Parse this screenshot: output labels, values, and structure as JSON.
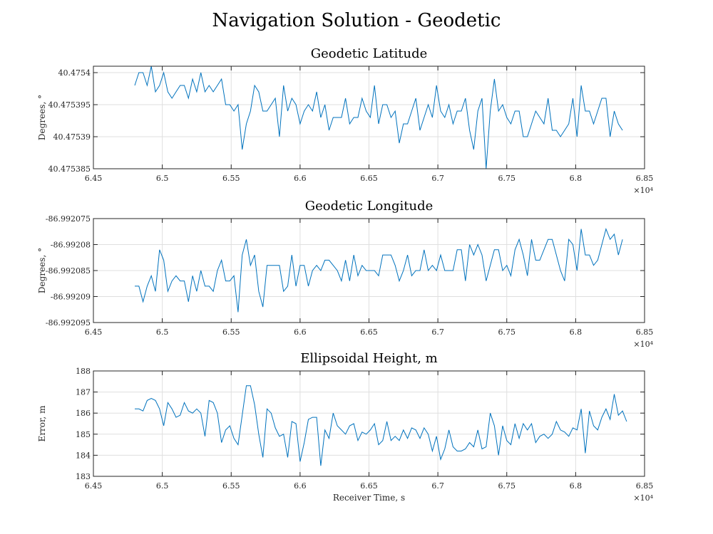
{
  "figure": {
    "title": "Navigation Solution - Geodetic",
    "line_color": "#0072BD",
    "grid_color": "#DFDFDF"
  },
  "chart_data": [
    {
      "type": "line",
      "title": "Geodetic Latitude",
      "xlabel": "",
      "ylabel": "Degrees, °",
      "xlim": [
        64500,
        68500
      ],
      "x_ticks": [
        64500,
        65000,
        65500,
        66000,
        66500,
        67000,
        67500,
        68000,
        68500
      ],
      "x_tick_labels": [
        "6.45",
        "6.5",
        "6.55",
        "6.6",
        "6.65",
        "6.7",
        "6.75",
        "6.8",
        "6.85"
      ],
      "x_exponent_label": "×10⁴",
      "ylim": [
        40.475385,
        40.475401
      ],
      "y_ticks": [
        40.475385,
        40.47539,
        40.475395,
        40.4754
      ],
      "y_tick_labels": [
        "40.475385",
        "40.47539",
        "40.475395",
        "40.4754"
      ],
      "grid": true,
      "x_start": 64800,
      "x_step": 30,
      "values": [
        40.475398,
        40.4754,
        40.4754,
        40.475398,
        40.475401,
        40.475397,
        40.475398,
        40.4754,
        40.475397,
        40.475396,
        40.475397,
        40.475398,
        40.475398,
        40.475396,
        40.475399,
        40.475397,
        40.4754,
        40.475397,
        40.475398,
        40.475397,
        40.475398,
        40.475399,
        40.475395,
        40.475395,
        40.475394,
        40.475395,
        40.475388,
        40.475392,
        40.475394,
        40.475398,
        40.475397,
        40.475394,
        40.475394,
        40.475395,
        40.475396,
        40.47539,
        40.475398,
        40.475394,
        40.475396,
        40.475395,
        40.475392,
        40.475394,
        40.475395,
        40.475394,
        40.475397,
        40.475393,
        40.475395,
        40.475391,
        40.475393,
        40.475393,
        40.475393,
        40.475396,
        40.475392,
        40.475393,
        40.475393,
        40.475396,
        40.475394,
        40.475393,
        40.475398,
        40.475392,
        40.475395,
        40.475395,
        40.475393,
        40.475394,
        40.475389,
        40.475392,
        40.475392,
        40.475394,
        40.475396,
        40.475391,
        40.475393,
        40.475395,
        40.475393,
        40.475398,
        40.475394,
        40.475393,
        40.475395,
        40.475392,
        40.475394,
        40.475394,
        40.475396,
        40.475391,
        40.475388,
        40.475394,
        40.475396,
        40.475385,
        40.475394,
        40.475399,
        40.475394,
        40.475395,
        40.475393,
        40.475392,
        40.475394,
        40.475394,
        40.47539,
        40.47539,
        40.475392,
        40.475394,
        40.475393,
        40.475392,
        40.475396,
        40.475391,
        40.475391,
        40.47539,
        40.475391,
        40.475392,
        40.475396,
        40.47539,
        40.475398,
        40.475394,
        40.475394,
        40.475392,
        40.475394,
        40.475396,
        40.475396,
        40.47539,
        40.475394,
        40.475392,
        40.475391
      ],
      "series": [
        {
          "color": "#0072BD"
        }
      ]
    },
    {
      "type": "line",
      "title": "Geodetic Longitude",
      "xlabel": "",
      "ylabel": "Degrees, °",
      "xlim": [
        64500,
        68500
      ],
      "x_ticks": [
        64500,
        65000,
        65500,
        66000,
        66500,
        67000,
        67500,
        68000,
        68500
      ],
      "x_tick_labels": [
        "6.45",
        "6.5",
        "6.55",
        "6.6",
        "6.65",
        "6.7",
        "6.75",
        "6.8",
        "6.85"
      ],
      "x_exponent_label": "×10⁴",
      "ylim": [
        -86.992095,
        -86.992075
      ],
      "y_ticks": [
        -86.992095,
        -86.99209,
        -86.992085,
        -86.99208,
        -86.992075
      ],
      "y_tick_labels": [
        "-86.992095",
        "-86.99209",
        "-86.992085",
        "-86.99208",
        "-86.992075"
      ],
      "grid": true,
      "x_start": 64800,
      "x_step": 30,
      "values": [
        -86.992088,
        -86.992088,
        -86.992091,
        -86.992088,
        -86.992086,
        -86.992089,
        -86.992081,
        -86.992083,
        -86.992089,
        -86.992087,
        -86.992086,
        -86.992087,
        -86.992087,
        -86.992091,
        -86.992086,
        -86.992089,
        -86.992085,
        -86.992088,
        -86.992088,
        -86.992089,
        -86.992085,
        -86.992083,
        -86.992087,
        -86.992087,
        -86.992086,
        -86.992093,
        -86.992082,
        -86.992079,
        -86.992084,
        -86.992082,
        -86.992089,
        -86.992092,
        -86.992084,
        -86.992084,
        -86.992084,
        -86.992084,
        -86.992089,
        -86.992088,
        -86.992082,
        -86.992088,
        -86.992084,
        -86.992084,
        -86.992088,
        -86.992085,
        -86.992084,
        -86.992085,
        -86.992083,
        -86.992083,
        -86.992084,
        -86.992085,
        -86.992087,
        -86.992083,
        -86.992087,
        -86.992082,
        -86.992086,
        -86.992084,
        -86.992085,
        -86.992085,
        -86.992085,
        -86.992086,
        -86.992082,
        -86.992082,
        -86.992082,
        -86.992084,
        -86.992087,
        -86.992085,
        -86.992082,
        -86.992086,
        -86.992085,
        -86.992085,
        -86.992081,
        -86.992085,
        -86.992084,
        -86.992085,
        -86.992082,
        -86.992085,
        -86.992085,
        -86.992085,
        -86.992081,
        -86.992081,
        -86.992087,
        -86.99208,
        -86.992082,
        -86.99208,
        -86.992082,
        -86.992087,
        -86.992084,
        -86.992081,
        -86.992081,
        -86.992085,
        -86.992084,
        -86.992086,
        -86.992081,
        -86.992079,
        -86.992082,
        -86.992086,
        -86.992079,
        -86.992083,
        -86.992083,
        -86.992081,
        -86.992079,
        -86.992079,
        -86.992082,
        -86.992085,
        -86.992087,
        -86.992079,
        -86.99208,
        -86.992085,
        -86.992077,
        -86.992082,
        -86.992082,
        -86.992084,
        -86.992083,
        -86.99208,
        -86.992077,
        -86.992079,
        -86.992078,
        -86.992082,
        -86.992079
      ],
      "series": [
        {
          "color": "#0072BD"
        }
      ]
    },
    {
      "type": "line",
      "title": "Ellipsoidal Height, m",
      "xlabel": "Receiver Time, s",
      "ylabel": "Error, m",
      "xlim": [
        64500,
        68500
      ],
      "x_ticks": [
        64500,
        65000,
        65500,
        66000,
        66500,
        67000,
        67500,
        68000,
        68500
      ],
      "x_tick_labels": [
        "6.45",
        "6.5",
        "6.55",
        "6.6",
        "6.65",
        "6.7",
        "6.75",
        "6.8",
        "6.85"
      ],
      "x_exponent_label": "×10⁴",
      "ylim": [
        183,
        188
      ],
      "y_ticks": [
        183,
        184,
        185,
        186,
        187,
        188
      ],
      "y_tick_labels": [
        "183",
        "184",
        "185",
        "186",
        "187",
        "188"
      ],
      "grid": true,
      "x_start": 64800,
      "x_step": 30,
      "values": [
        186.2,
        186.2,
        186.1,
        186.6,
        186.7,
        186.6,
        186.2,
        185.4,
        186.5,
        186.2,
        185.8,
        185.9,
        186.5,
        186.1,
        186.0,
        186.2,
        186.0,
        184.9,
        186.6,
        186.5,
        186.0,
        184.6,
        185.2,
        185.4,
        184.8,
        184.5,
        185.9,
        187.3,
        187.3,
        186.4,
        185.0,
        183.9,
        186.2,
        186.0,
        185.3,
        184.9,
        185.0,
        183.9,
        185.6,
        185.5,
        183.7,
        184.6,
        185.7,
        185.8,
        185.8,
        183.5,
        185.2,
        184.8,
        186.0,
        185.4,
        185.2,
        185.0,
        185.4,
        185.5,
        184.7,
        185.1,
        185.0,
        185.2,
        185.5,
        184.5,
        184.7,
        185.6,
        184.7,
        184.9,
        184.7,
        185.2,
        184.8,
        185.3,
        185.2,
        184.8,
        185.3,
        185.0,
        184.2,
        184.9,
        183.8,
        184.3,
        185.2,
        184.4,
        184.2,
        184.2,
        184.3,
        184.6,
        184.4,
        185.2,
        184.3,
        184.4,
        186.0,
        185.4,
        184.0,
        185.4,
        184.7,
        184.5,
        185.5,
        184.8,
        185.5,
        185.2,
        185.5,
        184.6,
        184.9,
        185.0,
        184.8,
        185.0,
        185.6,
        185.2,
        185.1,
        184.9,
        185.3,
        185.2,
        186.2,
        184.1,
        186.1,
        185.4,
        185.2,
        185.8,
        186.2,
        185.7,
        186.9,
        185.9,
        186.1,
        185.6
      ],
      "series": [
        {
          "color": "#0072BD"
        }
      ]
    }
  ]
}
